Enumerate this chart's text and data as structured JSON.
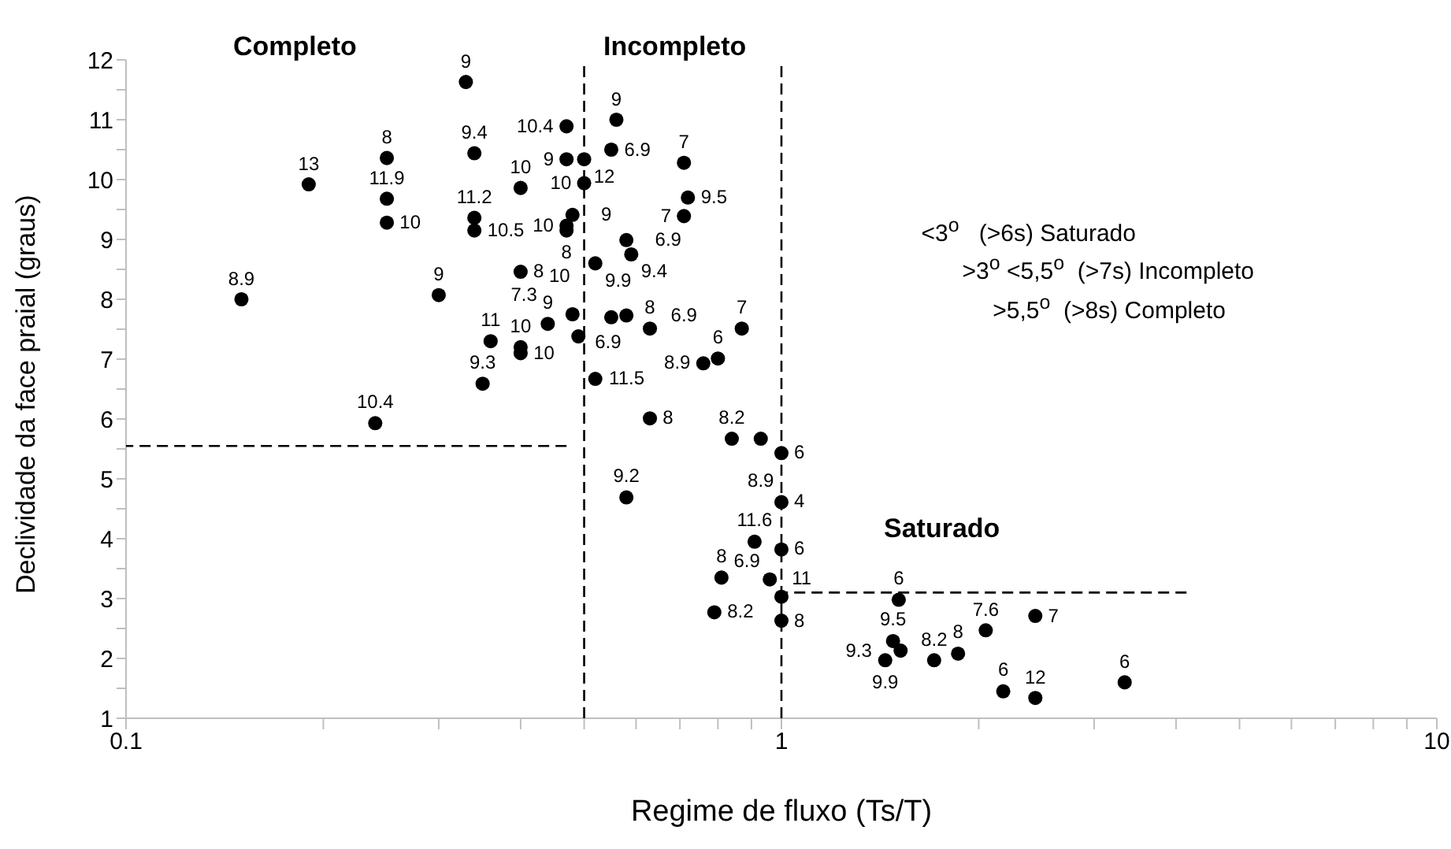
{
  "chart_data": {
    "type": "scatter",
    "xlabel": "Regime de fluxo (Ts/T)",
    "ylabel": "Declividade da face praial (graus)",
    "log": "x",
    "xlim": [
      0.1,
      10
    ],
    "xticks": [
      0.1,
      {
        "value": 0.2,
        "label": null
      },
      {
        "value": 0.3,
        "label": null
      },
      {
        "value": 0.4,
        "label": null
      },
      {
        "value": 0.5,
        "label": null
      },
      {
        "value": 0.6,
        "label": null
      },
      {
        "value": 0.7,
        "label": null
      },
      {
        "value": 0.8,
        "label": null
      },
      {
        "value": 0.9,
        "label": null
      },
      1,
      {
        "value": 2,
        "label": null
      },
      {
        "value": 3,
        "label": null
      },
      {
        "value": 4,
        "label": null
      },
      {
        "value": 5,
        "label": null
      },
      {
        "value": 6,
        "label": null
      },
      {
        "value": 7,
        "label": null
      },
      {
        "value": 8,
        "label": null
      },
      {
        "value": 9,
        "label": null
      },
      10
    ],
    "ylim": [
      1,
      12
    ],
    "yticks": [
      1,
      {
        "value": 1.5,
        "label": null
      },
      2,
      {
        "value": 2.5,
        "label": null
      },
      3,
      {
        "value": 3.5,
        "label": null
      },
      4,
      {
        "value": 4.5,
        "label": null
      },
      5,
      {
        "value": 5.5,
        "label": null
      },
      6,
      {
        "value": 6.5,
        "label": null
      },
      7,
      {
        "value": 7.5,
        "label": null
      },
      8,
      {
        "value": 8.5,
        "label": null
      },
      9,
      {
        "value": 9.5,
        "label": null
      },
      10,
      {
        "value": 10.5,
        "label": null
      },
      11,
      {
        "value": 11.5,
        "label": null
      },
      12
    ],
    "grid": false,
    "marker": "circle",
    "annotations": [
      "Completo",
      "Incompleto",
      "Saturado",
      "<3$^{o}$   (>6s) Saturado",
      ">3$^{o}$ <5,5$^{o}$  (>7s) Incompleto",
      ">5,5$^{o}$  (>8s) Completo",
      {
        "text": "8.9",
        "x": 0.15,
        "y": 8.0
      },
      {
        "text": "13",
        "x": 0.19,
        "y": 9.92
      },
      {
        "text": "8",
        "x": 0.25,
        "y": 10.36
      },
      {
        "text": "11.9",
        "x": 0.25,
        "y": 9.68
      },
      {
        "text": "10",
        "x": 0.25,
        "y": 9.28
      },
      {
        "text": "10.4",
        "x": 0.24,
        "y": 5.93
      },
      {
        "text": "9",
        "x": 0.33,
        "y": 11.63
      },
      {
        "text": "9.4",
        "x": 0.34,
        "y": 10.44
      },
      {
        "text": "10",
        "x": 0.4,
        "y": 9.86
      },
      {
        "text": "11.2",
        "x": 0.34,
        "y": 9.36
      },
      {
        "text": "10.5",
        "x": 0.34,
        "y": 9.15
      },
      {
        "text": "8",
        "x": 0.4,
        "y": 8.46
      },
      {
        "text": "9",
        "x": 0.3,
        "y": 8.07
      },
      {
        "text": "11",
        "x": 0.36,
        "y": 7.3
      },
      {
        "text": "10",
        "x": 0.4,
        "y": 7.2
      },
      {
        "text": "10",
        "x": 0.4,
        "y": 7.1
      },
      {
        "text": "9.3",
        "x": 0.35,
        "y": 6.59
      },
      {
        "text": "9",
        "x": 0.44,
        "y": 7.59
      },
      {
        "text": "10.4",
        "x": 0.47,
        "y": 10.89
      },
      {
        "text": "9",
        "x": 0.56,
        "y": 11.0
      },
      {
        "text": "9",
        "x": 0.47,
        "y": 10.34
      },
      {
        "text": "12",
        "x": 0.5,
        "y": 10.34
      },
      {
        "text": "6.9",
        "x": 0.55,
        "y": 10.5
      },
      {
        "text": "10",
        "x": 0.5,
        "y": 9.94
      },
      {
        "text": "7",
        "x": 0.71,
        "y": 10.28
      },
      {
        "text": "9.5",
        "x": 0.72,
        "y": 9.7
      },
      {
        "text": "7",
        "x": 0.71,
        "y": 9.39
      },
      {
        "text": "9",
        "x": 0.48,
        "y": 9.41
      },
      {
        "text": "10",
        "x": 0.47,
        "y": 9.23
      },
      {
        "text": "8",
        "x": 0.47,
        "y": 9.15
      },
      {
        "text": "9.9",
        "x": 0.52,
        "y": 8.6
      },
      {
        "text": "6.9",
        "x": 0.58,
        "y": 8.99
      },
      {
        "text": "9.4",
        "x": 0.59,
        "y": 8.75
      },
      {
        "text": "6.9",
        "x": 0.48,
        "y": 7.75
      },
      {
        "text": "7.3",
        "x": 0.49,
        "y": 7.38
      },
      {
        "text": "10",
        "x": 0.55,
        "y": 7.7
      },
      {
        "text": "6.9",
        "x": 0.58,
        "y": 7.73
      },
      {
        "text": "8",
        "x": 0.63,
        "y": 7.51
      },
      {
        "text": "11.5",
        "x": 0.52,
        "y": 6.67
      },
      {
        "text": "8.9",
        "x": 0.76,
        "y": 6.93
      },
      {
        "text": "6",
        "x": 0.8,
        "y": 7.01
      },
      {
        "text": "7",
        "x": 0.87,
        "y": 7.51
      },
      {
        "text": "8",
        "x": 0.63,
        "y": 6.01
      },
      {
        "text": "8.2",
        "x": 0.84,
        "y": 5.67
      },
      {
        "text": "8.9",
        "x": 0.93,
        "y": 5.67
      },
      {
        "text": "6",
        "x": 1.0,
        "y": 5.43
      },
      {
        "text": "9.2",
        "x": 0.58,
        "y": 4.69
      },
      {
        "text": "4",
        "x": 1.0,
        "y": 4.61
      },
      {
        "text": "11.6",
        "x": 0.91,
        "y": 3.95
      },
      {
        "text": "6",
        "x": 1.0,
        "y": 3.82
      },
      {
        "text": "8",
        "x": 0.81,
        "y": 3.35
      },
      {
        "text": "6.9",
        "x": 0.96,
        "y": 3.32
      },
      {
        "text": "11",
        "x": 1.0,
        "y": 3.03
      },
      {
        "text": "8.2",
        "x": 0.79,
        "y": 2.77
      },
      {
        "text": "8",
        "x": 1.0,
        "y": 2.63
      },
      {
        "text": "6",
        "x": 1.51,
        "y": 2.98
      },
      {
        "text": "9.5",
        "x": 1.48,
        "y": 2.29
      },
      {
        "text": "9.3",
        "x": 1.52,
        "y": 2.13
      },
      {
        "text": "9.9",
        "x": 1.44,
        "y": 1.97
      },
      {
        "text": "8.2",
        "x": 1.71,
        "y": 1.97
      },
      {
        "text": "8",
        "x": 1.86,
        "y": 2.08
      },
      {
        "text": "7.6",
        "x": 2.05,
        "y": 2.47
      },
      {
        "text": "7",
        "x": 2.44,
        "y": 2.71
      },
      {
        "text": "6",
        "x": 2.18,
        "y": 1.45
      },
      {
        "text": "12",
        "x": 2.44,
        "y": 1.34
      },
      {
        "text": "6",
        "x": 3.34,
        "y": 1.6
      }
    ],
    "series": [
      {
        "color": "#000000",
        "x": [
          0.15,
          0.19,
          0.25,
          0.25,
          0.25,
          0.24,
          0.33,
          0.34,
          0.4,
          0.34,
          0.34,
          0.4,
          0.3,
          0.36,
          0.4,
          0.4,
          0.35,
          0.44,
          0.47,
          0.56,
          0.47,
          0.5,
          0.55,
          0.5,
          0.71,
          0.72,
          0.71,
          0.48,
          0.47,
          0.47,
          0.52,
          0.58,
          0.59,
          0.48,
          0.49,
          0.55,
          0.58,
          0.63,
          0.52,
          0.76,
          0.8,
          0.87,
          0.63,
          0.84,
          0.93,
          1.0,
          0.58,
          1.0,
          0.91,
          1.0,
          0.81,
          0.96,
          1.0,
          0.79,
          1.0,
          1.51,
          1.48,
          1.52,
          1.44,
          1.71,
          1.86,
          2.05,
          2.44,
          2.18,
          2.44,
          3.34
        ],
        "values": [
          8.0,
          9.92,
          10.36,
          9.68,
          9.28,
          5.93,
          11.63,
          10.44,
          9.86,
          9.36,
          9.15,
          8.46,
          8.07,
          7.3,
          7.2,
          7.1,
          6.59,
          7.59,
          10.89,
          11.0,
          10.34,
          10.34,
          10.5,
          9.94,
          10.28,
          9.7,
          9.39,
          9.41,
          9.23,
          9.15,
          8.6,
          8.99,
          8.75,
          7.75,
          7.38,
          7.7,
          7.73,
          7.51,
          6.67,
          6.93,
          7.01,
          7.51,
          6.01,
          5.67,
          5.67,
          5.43,
          4.69,
          4.61,
          3.95,
          3.82,
          3.35,
          3.32,
          3.03,
          2.77,
          2.63,
          2.98,
          2.29,
          2.13,
          1.97,
          1.97,
          2.08,
          2.47,
          2.71,
          1.45,
          1.34,
          1.6
        ]
      },
      {
        "type": "line",
        "color": "#000000",
        "marker": "none",
        "line_style": "dashed",
        "x": [
          0.47,
          0.1
        ],
        "values": [
          5.55,
          5.55
        ]
      },
      {
        "type": "line",
        "color": "#000000",
        "marker": "none",
        "line_style": "dashed",
        "x": [
          0.5,
          0.5
        ],
        "values": [
          1,
          12
        ]
      },
      {
        "type": "line",
        "color": "#000000",
        "marker": "none",
        "line_style": "dashed",
        "x": [
          1,
          1
        ],
        "values": [
          1,
          12
        ]
      },
      {
        "type": "line",
        "color": "#000000",
        "marker": "none",
        "line_style": "dashed",
        "x": [
          4.15,
          1
        ],
        "values": [
          3.1,
          3.1
        ]
      }
    ]
  }
}
